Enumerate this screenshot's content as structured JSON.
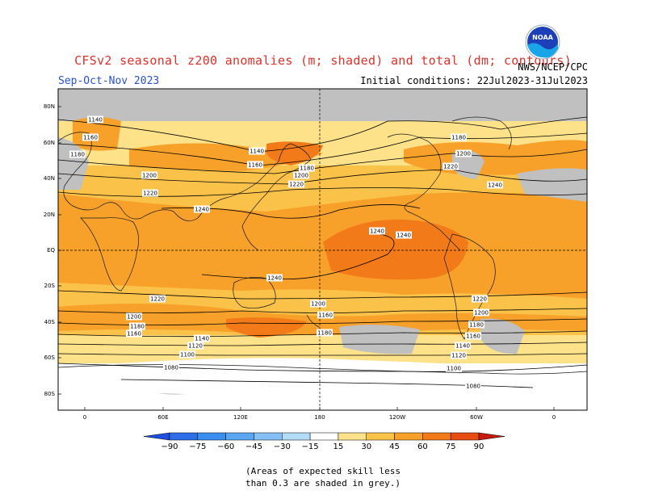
{
  "header": {
    "title": "CFSv2 seasonal z200 anomalies (m; shaded) and total (dm; contours)",
    "season": "Sep-Oct-Nov 2023",
    "agency": "NWS/NCEP/CPC",
    "initial_conditions": "Initial conditions: 22Jul2023-31Jul2023",
    "logo_text": "NOAA"
  },
  "map": {
    "lat_labels": [
      "80N",
      "60N",
      "40N",
      "20N",
      "EQ",
      "20S",
      "40S",
      "60S",
      "80S"
    ],
    "lon_labels": [
      "0",
      "60E",
      "120E",
      "180",
      "120W",
      "60W",
      "0"
    ],
    "contour_labels": [
      "1140",
      "1160",
      "1180",
      "1200",
      "1220",
      "1240",
      "1240",
      "1240",
      "1240",
      "1220",
      "1200",
      "1180",
      "1160",
      "1140",
      "1120",
      "1100",
      "1080",
      "1080",
      "1100",
      "1120",
      "1140",
      "1160",
      "1180",
      "1200",
      "1220",
      "1140",
      "1160",
      "1180",
      "1200",
      "1220",
      "1180",
      "1200",
      "1220",
      "1240",
      "1160",
      "1180",
      "1200"
    ],
    "skill_note": [
      "(Areas of expected skill less",
      "than 0.3 are shaded in grey.)"
    ]
  },
  "colorbar": {
    "ticks": [
      "-90",
      "-75",
      "-60",
      "-45",
      "-30",
      "-15",
      "15",
      "30",
      "45",
      "60",
      "75",
      "90"
    ],
    "colors": [
      "#1f4fe0",
      "#2d6ee8",
      "#3a8ef0",
      "#5aa6f2",
      "#84c0f5",
      "#b2dcf8",
      "#ffffff",
      "#fde28a",
      "#fbc24a",
      "#f7a02a",
      "#f27a18",
      "#e84c10",
      "#c81a0e"
    ]
  }
}
